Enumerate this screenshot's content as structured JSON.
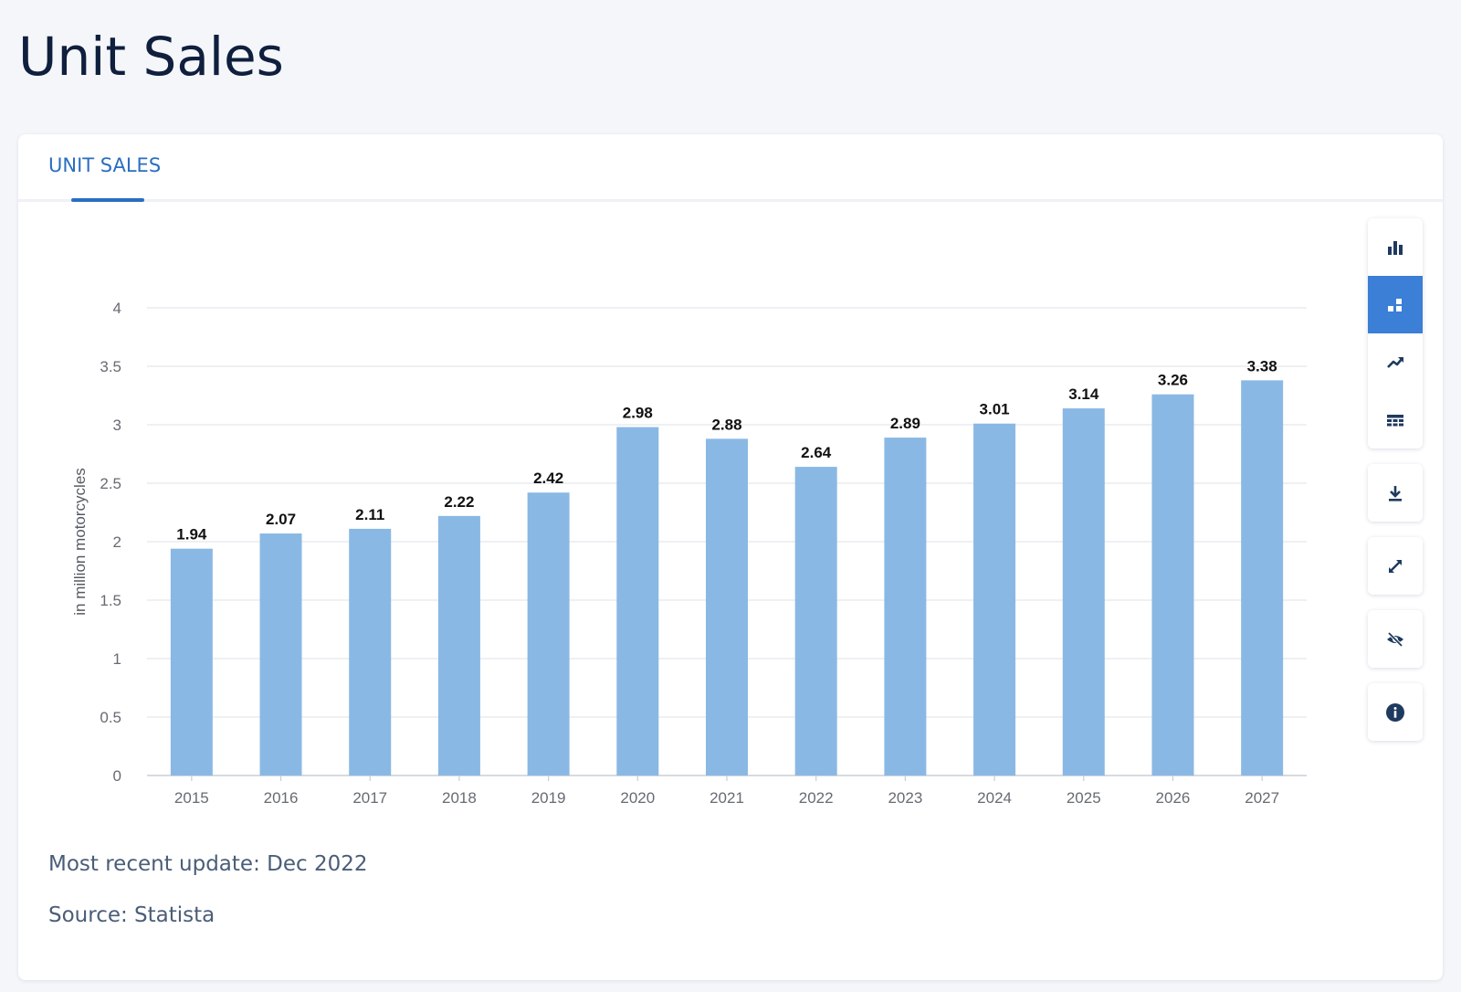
{
  "page": {
    "title": "Unit Sales"
  },
  "tabs": [
    {
      "label": "UNIT SALES",
      "active": true
    }
  ],
  "toolbar": {
    "groups": [
      [
        "bar-chart-icon",
        "stacked-bar-icon",
        "trend-line-icon",
        "table-icon"
      ],
      [
        "download-icon"
      ],
      [
        "expand-icon"
      ],
      [
        "hide-icon"
      ],
      [
        "info-icon"
      ]
    ],
    "active": "stacked-bar-icon"
  },
  "footer": {
    "update": "Most recent update: Dec 2022",
    "source": "Source: Statista"
  },
  "colors": {
    "bar": "#8ab8e4",
    "accent": "#2a6ec0",
    "active_button": "#3b7fd6",
    "grid": "#e4e7ec"
  },
  "chart_data": {
    "type": "bar",
    "categories": [
      "2015",
      "2016",
      "2017",
      "2018",
      "2019",
      "2020",
      "2021",
      "2022",
      "2023",
      "2024",
      "2025",
      "2026",
      "2027"
    ],
    "values": [
      1.94,
      2.07,
      2.11,
      2.22,
      2.42,
      2.98,
      2.88,
      2.64,
      2.89,
      3.01,
      3.14,
      3.26,
      3.38
    ],
    "value_labels": [
      "1.94",
      "2.07",
      "2.11",
      "2.22",
      "2.42",
      "2.98",
      "2.88",
      "2.64",
      "2.89",
      "3.01",
      "3.14",
      "3.26",
      "3.38"
    ],
    "ylabel": "in million motorcycles",
    "ylim": [
      0,
      4
    ],
    "yticks": [
      0,
      0.5,
      1,
      1.5,
      2,
      2.5,
      3,
      3.5,
      4
    ],
    "ytick_labels": [
      "0",
      "0.5",
      "1",
      "1.5",
      "2",
      "2.5",
      "3",
      "3.5",
      "4"
    ],
    "grid": true
  }
}
